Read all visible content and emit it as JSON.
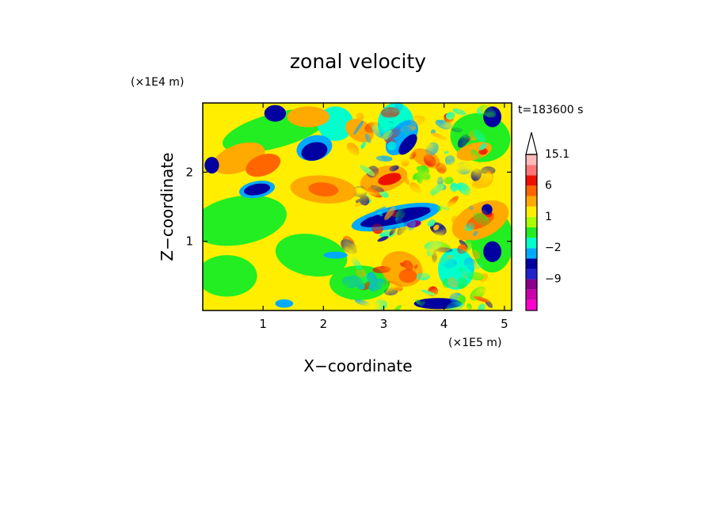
{
  "chart_data": {
    "type": "heatmap",
    "title": "zonal velocity",
    "xlabel": "X−coordinate",
    "ylabel": "Z−coordinate",
    "x_unit": "(×1E5 m)",
    "y_unit": "(×1E4 m)",
    "time_label": "t=183600 s",
    "xlim": [
      0,
      5.12
    ],
    "ylim": [
      0,
      3.0
    ],
    "x_ticks": [
      1,
      2,
      3,
      4,
      5
    ],
    "y_ticks": [
      1,
      2
    ],
    "grid": false,
    "colorbar": {
      "position": "right",
      "levels": [
        -15,
        -12,
        -9,
        -6,
        -3,
        -2,
        -1,
        0,
        1,
        2,
        3,
        6,
        9,
        12,
        15.1
      ],
      "colors": [
        "#ff00cc",
        "#cc00aa",
        "#8b008b",
        "#2222cc",
        "#0000a0",
        "#00aaff",
        "#00ffcc",
        "#22ee22",
        "#aaff00",
        "#ffee00",
        "#ffaa00",
        "#ff6600",
        "#ee1100",
        "#ff7777",
        "#ffbbbb"
      ],
      "labels": [
        {
          "text": "15.1",
          "value": 15.1
        },
        {
          "text": "6",
          "value": 6
        },
        {
          "text": "1",
          "value": 1
        },
        {
          "text": "−2",
          "value": -2
        },
        {
          "text": "−9",
          "value": -9
        }
      ],
      "extend": "max"
    }
  }
}
